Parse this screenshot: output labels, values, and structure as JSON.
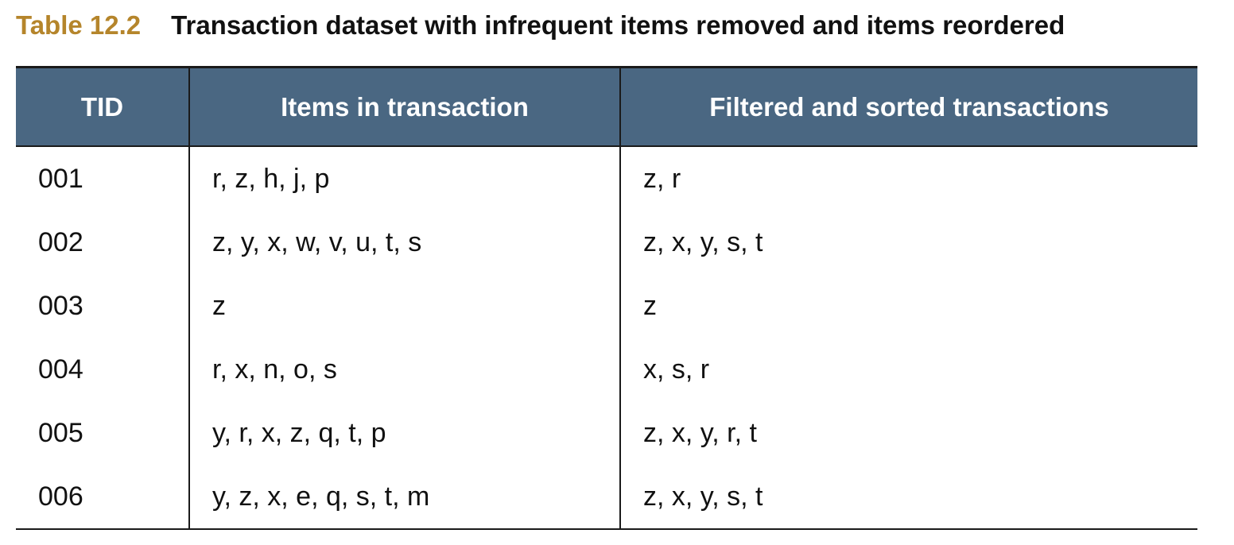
{
  "caption": {
    "label": "Table 12.2",
    "title": "Transaction dataset with infrequent items removed and items reordered"
  },
  "table": {
    "headers": [
      "TID",
      "Items in transaction",
      "Filtered and sorted transactions"
    ],
    "rows": [
      [
        "001",
        "r, z, h, j, p",
        "z, r"
      ],
      [
        "002",
        "z, y, x, w, v, u, t, s",
        "z, x, y, s, t"
      ],
      [
        "003",
        "z",
        "z"
      ],
      [
        "004",
        "r, x, n, o, s",
        "x, s, r"
      ],
      [
        "005",
        "y, r, x, z, q, t, p",
        "z, x, y, r, t"
      ],
      [
        "006",
        "y, z, x, e, q, s, t, m",
        "z, x, y, s, t"
      ]
    ]
  },
  "colors": {
    "caption_label": "#b5852b",
    "header_background": "#4a6782",
    "header_text": "#ffffff"
  }
}
